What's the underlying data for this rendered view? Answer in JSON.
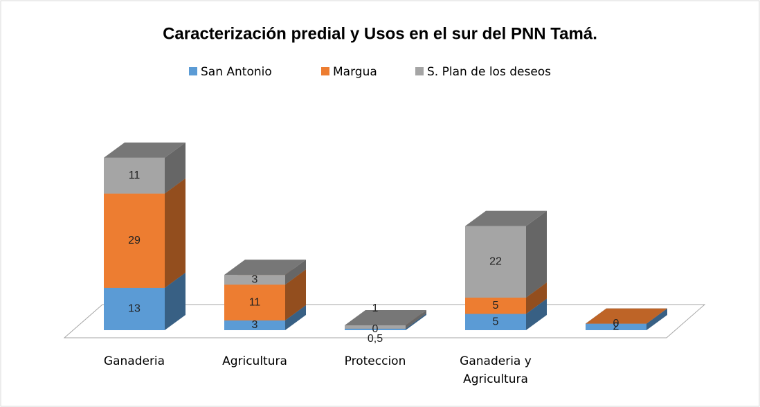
{
  "chart_data": {
    "type": "bar3d_stacked",
    "title": "Caracterización predial y  Usos en el sur del PNN Tamá.",
    "categories": [
      "Ganaderia",
      "Agricultura",
      "Proteccion",
      "Ganaderia y Agricultura",
      null
    ],
    "series": [
      {
        "name": "San Antonio",
        "color": "#5b9bd5",
        "values": [
          13,
          3,
          0.5,
          5,
          2
        ],
        "value_labels": [
          "13",
          "3",
          "0,5",
          "5",
          "2"
        ]
      },
      {
        "name": "Margua",
        "color": "#ed7d31",
        "values": [
          29,
          11,
          0,
          5,
          0
        ]
      },
      {
        "name": "S. Plan de los deseos",
        "color": "#a5a5a5",
        "values": [
          11,
          3,
          1,
          22,
          null
        ]
      }
    ],
    "legend": "top"
  }
}
